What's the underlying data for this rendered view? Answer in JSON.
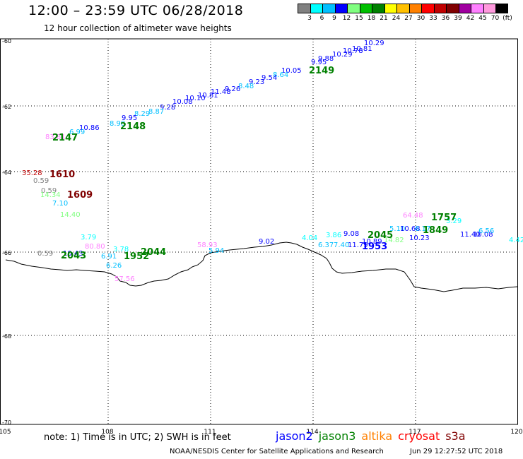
{
  "header": {
    "title": "12:00 – 23:59 UTC 06/28/2018",
    "subtitle": "12 hour collection of altimeter wave heights"
  },
  "legend": {
    "unit": "(ft)",
    "colors": [
      "#808080",
      "#00ffff",
      "#00bfff",
      "#0000ff",
      "#80ff80",
      "#00c000",
      "#008000",
      "#ffff00",
      "#ffc000",
      "#ff8000",
      "#ff0000",
      "#c00000",
      "#800000",
      "#a000a0",
      "#ff80ff",
      "#ff99dd",
      "#000000"
    ],
    "labels": [
      "3",
      "6",
      "9",
      "12",
      "15",
      "18",
      "21",
      "24",
      "27",
      "30",
      "33",
      "36",
      "39",
      "42",
      "45",
      "70"
    ]
  },
  "axes": {
    "x_ticks": [
      "105",
      "108",
      "111",
      "114",
      "117",
      "120"
    ],
    "y_ticks": [
      "-60",
      "-62",
      "-64",
      "-66",
      "-68",
      "-70"
    ]
  },
  "labels": [
    {
      "t": "10.29",
      "c": "#0000ff"
    },
    {
      "t": "10.81",
      "c": "#0000ff"
    },
    {
      "t": "10.78",
      "c": "#0000ff"
    },
    {
      "t": "10.29",
      "c": "#0000ff"
    },
    {
      "t": "9.88",
      "c": "#0000ff"
    },
    {
      "t": "9.95",
      "c": "#0000ff"
    },
    {
      "t": "10.05",
      "c": "#0000ff"
    },
    {
      "t": "8.64",
      "c": "#00bfff"
    },
    {
      "t": "9.54",
      "c": "#0000ff"
    },
    {
      "t": "9.23",
      "c": "#0000ff"
    },
    {
      "t": "8.48",
      "c": "#00bfff"
    },
    {
      "t": "9.26",
      "c": "#0000ff"
    },
    {
      "t": "11.48",
      "c": "#0000ff"
    },
    {
      "t": "10.81",
      "c": "#0000ff"
    },
    {
      "t": "10.10",
      "c": "#0000ff"
    },
    {
      "t": "10.08",
      "c": "#0000ff"
    },
    {
      "t": "9.28",
      "c": "#0000ff"
    },
    {
      "t": "8.87",
      "c": "#00bfff"
    },
    {
      "t": "8.29",
      "c": "#00bfff"
    },
    {
      "t": "9.95",
      "c": "#0000ff"
    },
    {
      "t": "8.98",
      "c": "#00bfff"
    },
    {
      "t": "10.86",
      "c": "#0000ff"
    },
    {
      "t": "6.99",
      "c": "#00bfff"
    },
    {
      "t": "83.81",
      "c": "#ff80ff"
    },
    {
      "t": "35.28",
      "c": "#c00000"
    },
    {
      "t": "0.59",
      "c": "#808080"
    },
    {
      "t": "0.59",
      "c": "#808080"
    },
    {
      "t": "14.34",
      "c": "#80ff80"
    },
    {
      "t": "7.10",
      "c": "#00bfff"
    },
    {
      "t": "14.40",
      "c": "#80ff80"
    },
    {
      "t": "3.79",
      "c": "#00ffff"
    },
    {
      "t": "80.80",
      "c": "#ff80ff"
    },
    {
      "t": "0.59",
      "c": "#808080"
    },
    {
      "t": "10.43",
      "c": "#0000ff"
    },
    {
      "t": "6.91",
      "c": "#00bfff"
    },
    {
      "t": "3.78",
      "c": "#00ffff"
    },
    {
      "t": "6.26",
      "c": "#00bfff"
    },
    {
      "t": "57.56",
      "c": "#ff80ff"
    },
    {
      "t": "58.93",
      "c": "#ff80ff"
    },
    {
      "t": "5.94",
      "c": "#00bfff"
    },
    {
      "t": "9.02",
      "c": "#0000ff"
    },
    {
      "t": "4.04",
      "c": "#00ffff"
    },
    {
      "t": "3.86",
      "c": "#00ffff"
    },
    {
      "t": "9.08",
      "c": "#0000ff"
    },
    {
      "t": "6.37",
      "c": "#00bfff"
    },
    {
      "t": "7.40",
      "c": "#00bfff"
    },
    {
      "t": "11.79",
      "c": "#0000ff"
    },
    {
      "t": "10.89",
      "c": "#0000ff"
    },
    {
      "t": "14.82",
      "c": "#80ff80"
    },
    {
      "t": "5.10",
      "c": "#00bfff"
    },
    {
      "t": "10.68",
      "c": "#0000ff"
    },
    {
      "t": "6.17",
      "c": "#00bfff"
    },
    {
      "t": "10.23",
      "c": "#0000ff"
    },
    {
      "t": "64.48",
      "c": "#ff80ff"
    },
    {
      "t": "3.29",
      "c": "#00ffff"
    },
    {
      "t": "11.40",
      "c": "#0000ff"
    },
    {
      "t": "10.08",
      "c": "#0000ff"
    },
    {
      "t": "6.56",
      "c": "#00bfff"
    },
    {
      "t": "4.42",
      "c": "#00ffff"
    }
  ],
  "pass_labels": [
    {
      "t": "2149",
      "c": "#008000"
    },
    {
      "t": "2148",
      "c": "#008000"
    },
    {
      "t": "2147",
      "c": "#008000"
    },
    {
      "t": "1610",
      "c": "#800000"
    },
    {
      "t": "1609",
      "c": "#800000"
    },
    {
      "t": "2043",
      "c": "#008000"
    },
    {
      "t": "1952",
      "c": "#008000"
    },
    {
      "t": "2044",
      "c": "#008000"
    },
    {
      "t": "2045",
      "c": "#008000"
    },
    {
      "t": "1953",
      "c": "#0000ff"
    },
    {
      "t": "1757",
      "c": "#008000"
    },
    {
      "t": "1849",
      "c": "#008000"
    }
  ],
  "footer": {
    "note": "note: 1) Time is in UTC; 2) SWH is in feet",
    "satellites": [
      {
        "name": "jason2",
        "color": "#0000ff"
      },
      {
        "name": "jason3",
        "color": "#008000"
      },
      {
        "name": "altika",
        "color": "#ff8000"
      },
      {
        "name": "cryosat",
        "color": "#ff0000"
      },
      {
        "name": "s3a",
        "color": "#800000"
      }
    ],
    "credit": "NOAA/NESDIS Center for Satellite Applications and Research",
    "issued": "Jun 29 12:27:52 UTC 2018"
  }
}
